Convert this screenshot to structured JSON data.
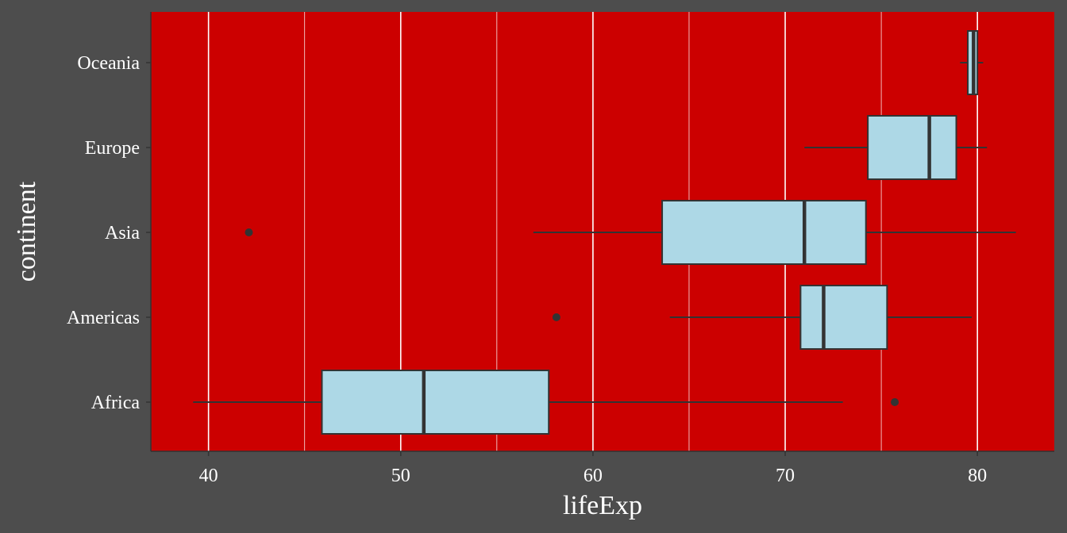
{
  "chart_data": {
    "type": "boxplot",
    "orientation": "horizontal",
    "xlabel": "lifeExp",
    "ylabel": "continent",
    "xlim": [
      37,
      84
    ],
    "x_ticks": [
      40,
      50,
      60,
      70,
      80
    ],
    "x_minor_ticks": [
      45,
      55,
      65,
      75
    ],
    "grid": "vertical",
    "categories": [
      "Africa",
      "Americas",
      "Asia",
      "Europe",
      "Oceania"
    ],
    "boxes": [
      {
        "category": "Africa",
        "whisker_low": 39.2,
        "q1": 45.9,
        "median": 51.2,
        "q3": 57.7,
        "whisker_high": 73.0,
        "outliers": [
          75.7
        ]
      },
      {
        "category": "Americas",
        "whisker_low": 64.0,
        "q1": 70.8,
        "median": 72.0,
        "q3": 75.3,
        "whisker_high": 79.7,
        "outliers": [
          58.1
        ]
      },
      {
        "category": "Asia",
        "whisker_low": 56.9,
        "q1": 63.6,
        "median": 71.0,
        "q3": 74.2,
        "whisker_high": 82.0,
        "outliers": [
          42.1
        ]
      },
      {
        "category": "Europe",
        "whisker_low": 71.0,
        "q1": 74.3,
        "median": 77.5,
        "q3": 78.9,
        "whisker_high": 80.5,
        "outliers": []
      },
      {
        "category": "Oceania",
        "whisker_low": 79.1,
        "q1": 79.5,
        "median": 79.8,
        "q3": 80.0,
        "whisker_high": 80.3,
        "outliers": []
      }
    ],
    "colors": {
      "page_background": "#4d4d4d",
      "panel_background": "#cc0000",
      "grid_major": "#ffffff",
      "grid_minor": "#ffffff",
      "box_fill": "#add8e6",
      "box_stroke": "#333333",
      "text": "#ffffff"
    }
  }
}
